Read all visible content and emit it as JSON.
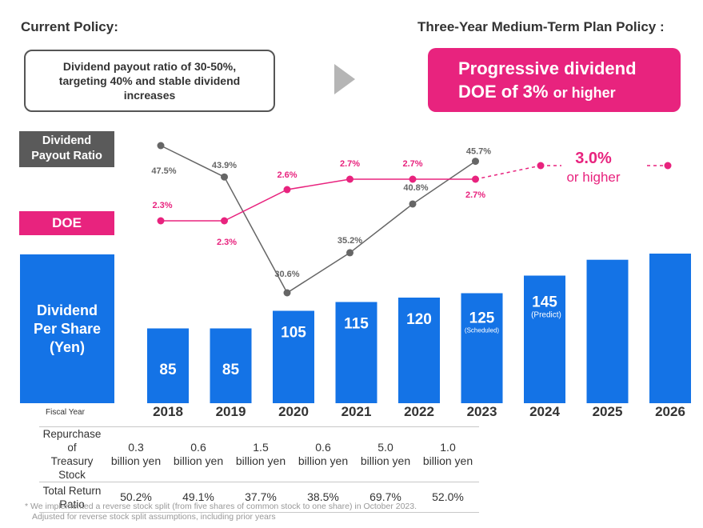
{
  "header": {
    "current_title": "Current Policy:",
    "plan_title": "Three-Year Medium-Term Plan Policy :"
  },
  "current_policy_text": "Dividend payout ratio of 30-50%, targeting 40% and stable dividend increases",
  "plan_policy": {
    "line1": "Progressive dividend",
    "line2_main": "DOE of 3%",
    "line2_small": "or higher"
  },
  "labels": {
    "payout_ratio_line1": "Dividend",
    "payout_ratio_line2": "Payout Ratio",
    "doe": "DOE",
    "dps_line1": "Dividend",
    "dps_line2": "Per Share",
    "dps_line3": "(Yen)",
    "fiscal_year": "Fiscal Year"
  },
  "colors": {
    "bar": "#1473e6",
    "doe": "#e8237e",
    "payout": "#666666",
    "gray_label": "#5a5a5a"
  },
  "chart_data": {
    "type": "bar",
    "categories": [
      "2018",
      "2019",
      "2020",
      "2021",
      "2022",
      "2023",
      "2024",
      "2025",
      "2026"
    ],
    "dividend_per_share": [
      85,
      85,
      105,
      115,
      120,
      125,
      145,
      null,
      null
    ],
    "bar_level_relative": [
      85,
      85,
      105,
      115,
      120,
      125,
      145,
      163,
      170
    ],
    "bar_value_labels": [
      "85",
      "85",
      "105",
      "115",
      "120",
      "125",
      "145",
      "",
      ""
    ],
    "bar_notes": [
      "",
      "",
      "",
      "",
      "",
      "(Scheduled)",
      "(Predict)",
      "",
      ""
    ],
    "payout_ratio": {
      "values": [
        47.5,
        43.9,
        30.6,
        35.2,
        40.8,
        45.7
      ],
      "labels": [
        "47.5%",
        "43.9%",
        "30.6%",
        "35.2%",
        "40.8%",
        "45.7%"
      ]
    },
    "doe": {
      "values": [
        2.3,
        2.3,
        2.6,
        2.7,
        2.7,
        2.7
      ],
      "labels": [
        "2.3%",
        "2.3%",
        "2.6%",
        "2.7%",
        "2.7%",
        "2.7%"
      ],
      "target_value": 3.0,
      "target_label": "3.0%",
      "target_sub": "or higher"
    },
    "repurchase": [
      [
        "0.3",
        "billion yen"
      ],
      [
        "0.6",
        "billion yen"
      ],
      [
        "1.5",
        "billion yen"
      ],
      [
        "0.6",
        "billion yen"
      ],
      [
        "5.0",
        "billion yen"
      ],
      [
        "1.0",
        "billion yen"
      ]
    ],
    "total_return_ratio": [
      "50.2%",
      "49.1%",
      "37.7%",
      "38.5%",
      "69.7%",
      "52.0%"
    ]
  },
  "table": {
    "repurchase_head_line1": "Repurchase of",
    "repurchase_head_line2": "Treasury Stock",
    "return_head_line1": "Total Return",
    "return_head_line2": "Ratio"
  },
  "footnote": {
    "line1": "* We implemented a reverse stock split (from five shares of common stock to one share) in October 2023.",
    "line2": "Adjusted for reverse stock split assumptions, including prior years"
  }
}
